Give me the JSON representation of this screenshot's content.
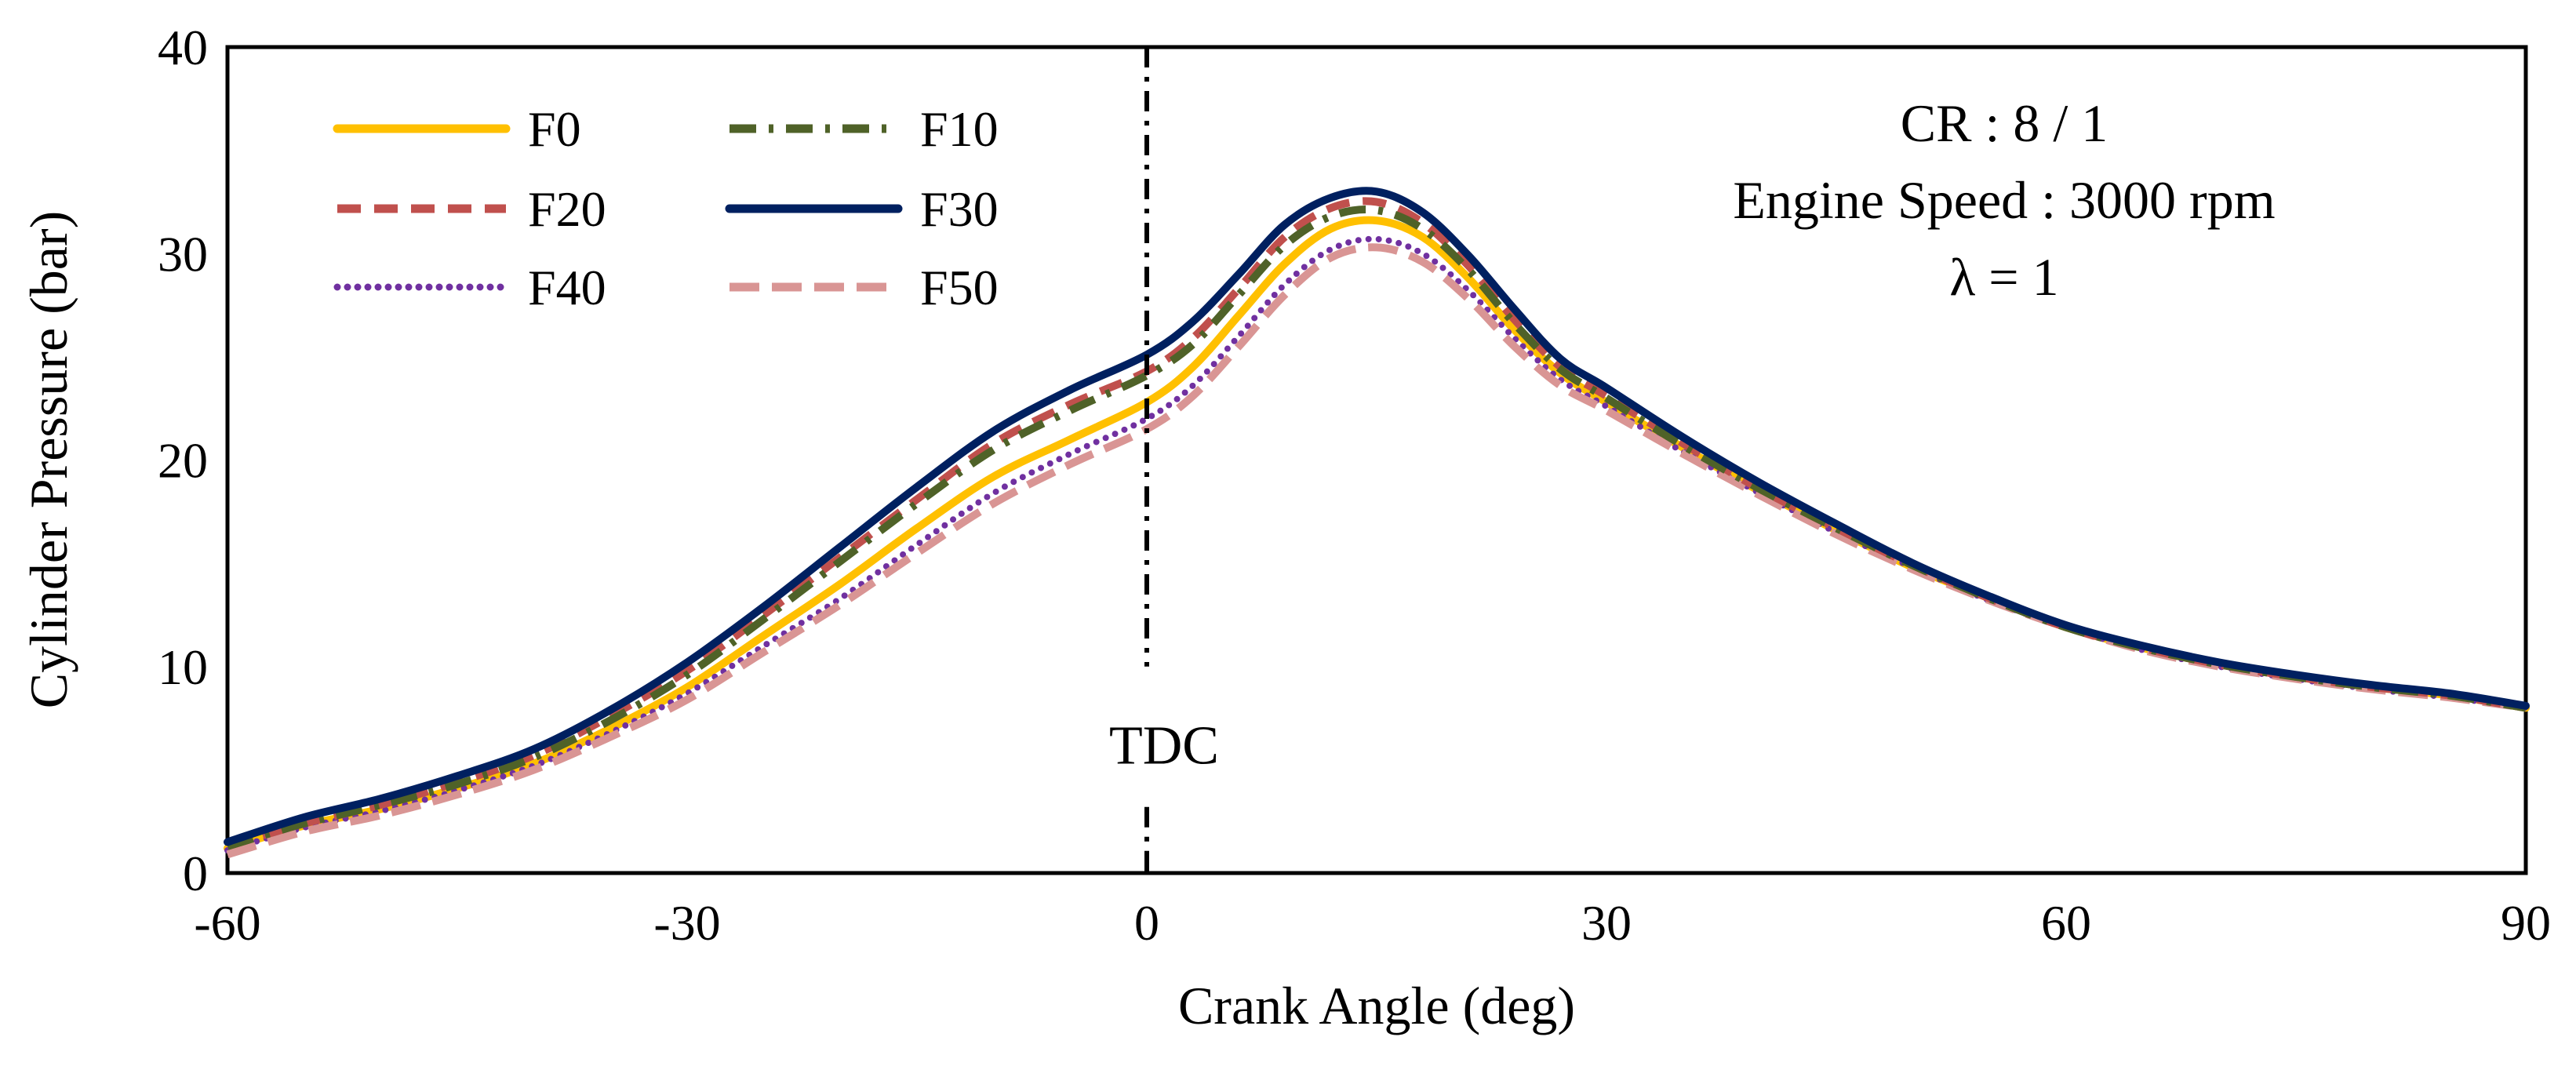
{
  "chart_data": {
    "type": "line",
    "title": "",
    "xlabel": "Crank Angle (deg)",
    "ylabel": "Cylinder Pressure (bar)",
    "xlim": [
      -60,
      90
    ],
    "ylim": [
      0,
      40
    ],
    "xticks": [
      -60,
      -30,
      0,
      30,
      60,
      90
    ],
    "yticks": [
      0,
      10,
      20,
      30,
      40
    ],
    "grid": false,
    "legend_position": "top-left",
    "annotations": {
      "tdc_label": "TDC",
      "tdc_x": 0,
      "tdc_y_range": [
        10,
        40
      ],
      "conditions": [
        "CR : 8 / 1",
        "Engine Speed : 3000 rpm",
        "λ = 1"
      ]
    },
    "x": [
      -60,
      -55,
      -50,
      -45,
      -40,
      -35,
      -30,
      -25,
      -20,
      -15,
      -10,
      -5,
      0,
      3,
      6,
      9,
      12,
      15,
      18,
      21,
      24,
      27,
      30,
      35,
      40,
      45,
      50,
      55,
      60,
      65,
      70,
      75,
      80,
      85,
      90
    ],
    "series": [
      {
        "name": "F0",
        "color": "#FFC000",
        "dash": "solid",
        "values": [
          1.2,
          2.3,
          3.1,
          4.1,
          5.3,
          7.0,
          9.0,
          11.5,
          14.0,
          16.7,
          19.2,
          21.0,
          22.8,
          24.5,
          27.0,
          29.5,
          31.2,
          31.6,
          30.8,
          28.8,
          26.3,
          24.2,
          22.8,
          20.6,
          18.5,
          16.6,
          14.8,
          13.3,
          11.9,
          10.9,
          10.1,
          9.5,
          9.0,
          8.6,
          8.0
        ]
      },
      {
        "name": "F10",
        "color": "#4F6228",
        "dash": "dashdot",
        "values": [
          1.3,
          2.4,
          3.3,
          4.3,
          5.6,
          7.4,
          9.6,
          12.3,
          15.1,
          17.9,
          20.5,
          22.4,
          24.1,
          25.6,
          28.0,
          30.4,
          31.8,
          32.1,
          31.2,
          29.2,
          26.6,
          24.4,
          23.0,
          20.7,
          18.6,
          16.7,
          14.9,
          13.3,
          11.9,
          10.9,
          10.1,
          9.5,
          9.0,
          8.6,
          8.0
        ]
      },
      {
        "name": "F20",
        "color": "#C0504D",
        "dash": "dash",
        "values": [
          1.3,
          2.4,
          3.3,
          4.4,
          5.7,
          7.6,
          9.8,
          12.5,
          15.3,
          18.1,
          20.8,
          22.7,
          24.3,
          25.9,
          28.3,
          30.8,
          32.2,
          32.5,
          31.5,
          29.4,
          26.8,
          24.5,
          23.1,
          20.8,
          18.6,
          16.7,
          14.9,
          13.3,
          11.9,
          10.9,
          10.1,
          9.5,
          9.0,
          8.6,
          8.0
        ]
      },
      {
        "name": "F30",
        "color": "#002060",
        "dash": "solid",
        "values": [
          1.5,
          2.7,
          3.6,
          4.7,
          6.0,
          7.9,
          10.2,
          12.9,
          15.8,
          18.7,
          21.4,
          23.4,
          25.1,
          26.7,
          29.0,
          31.4,
          32.7,
          33.0,
          32.0,
          29.9,
          27.3,
          24.9,
          23.5,
          21.1,
          18.9,
          16.9,
          15.0,
          13.4,
          12.0,
          11.0,
          10.2,
          9.6,
          9.1,
          8.7,
          8.1
        ]
      },
      {
        "name": "F40",
        "color": "#7030A0",
        "dash": "dot",
        "values": [
          1.1,
          2.2,
          3.0,
          4.0,
          5.2,
          6.8,
          8.7,
          11.0,
          13.3,
          15.9,
          18.4,
          20.3,
          22.0,
          23.6,
          26.0,
          28.5,
          30.2,
          30.7,
          30.0,
          28.2,
          25.9,
          23.9,
          22.6,
          20.4,
          18.4,
          16.5,
          14.8,
          13.2,
          11.9,
          10.8,
          10.0,
          9.4,
          8.9,
          8.5,
          8.0
        ]
      },
      {
        "name": "F50",
        "color": "#D99594",
        "dash": "longdash",
        "values": [
          0.9,
          2.0,
          2.8,
          3.8,
          5.0,
          6.6,
          8.4,
          10.7,
          13.0,
          15.5,
          17.9,
          19.8,
          21.5,
          23.1,
          25.5,
          28.0,
          29.8,
          30.3,
          29.6,
          27.8,
          25.5,
          23.6,
          22.4,
          20.3,
          18.3,
          16.4,
          14.7,
          13.2,
          11.9,
          10.8,
          10.0,
          9.4,
          8.9,
          8.5,
          8.0
        ]
      }
    ]
  }
}
